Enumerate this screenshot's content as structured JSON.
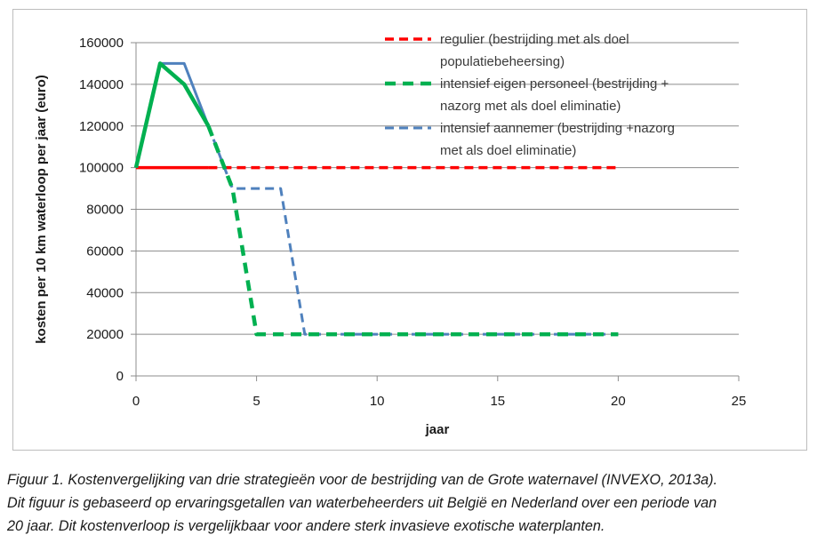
{
  "chart_data": {
    "type": "line",
    "xlabel": "jaar",
    "ylabel": "kosten per 10 km waterloop per jaar (euro)",
    "xlim": [
      0,
      25
    ],
    "ylim": [
      0,
      160000
    ],
    "x_ticks": [
      0,
      5,
      10,
      15,
      20,
      25
    ],
    "y_ticks": [
      0,
      20000,
      40000,
      60000,
      80000,
      100000,
      120000,
      140000,
      160000
    ],
    "grid": "horizontal",
    "legend_position": "top-right",
    "series": [
      {
        "name": "regulier (bestrijding met als doel populatiebeheersing)",
        "legend_lines": [
          "regulier (bestrijding met als doel",
          "populatiebeheersing)"
        ],
        "color": "#ff0000",
        "style": "solid-then-dashed",
        "x": [
          0,
          3.5,
          20
        ],
        "y": [
          100000,
          100000,
          100000
        ]
      },
      {
        "name": "intensief eigen personeel (bestrijding + nazorg met als doel eliminatie)",
        "legend_lines": [
          "intensief eigen personeel (bestrijding +",
          "nazorg met als doel eliminatie)"
        ],
        "color": "#00b050",
        "style": "solid-then-dashed",
        "x": [
          0,
          1,
          2,
          3,
          4,
          5,
          20
        ],
        "y": [
          100000,
          150000,
          140000,
          120000,
          90000,
          20000,
          20000
        ]
      },
      {
        "name": "intensief aannemer (bestrijding +nazorg met als doel eliminatie)",
        "legend_lines": [
          "intensief aannemer (bestrijding +nazorg",
          "met als doel eliminatie)"
        ],
        "color": "#4f81bd",
        "style": "solid-then-dashed",
        "x": [
          0,
          1,
          2,
          3,
          4,
          6,
          7,
          20
        ],
        "y": [
          100000,
          150000,
          150000,
          120000,
          90000,
          90000,
          20000,
          20000
        ]
      }
    ]
  },
  "caption": "Figuur 1. Kostenvergelijking van drie strategieën voor de bestrijding van de Grote waternavel (INVEXO, 2013a). Dit figuur is gebaseerd op ervaringsgetallen van waterbeheerders uit België en Nederland over een periode van 20 jaar. Dit kostenverloop is vergelijkbaar voor andere sterk invasieve exotische waterplanten.",
  "caption_lines": [
    "Figuur 1. Kostenvergelijking van drie strategieën voor de bestrijding van de Grote waternavel (INVEXO, 2013a).",
    "Dit figuur is gebaseerd op ervaringsgetallen van waterbeheerders uit België en Nederland over een periode van",
    "20 jaar. Dit kostenverloop is vergelijkbaar voor andere sterk invasieve exotische waterplanten."
  ]
}
